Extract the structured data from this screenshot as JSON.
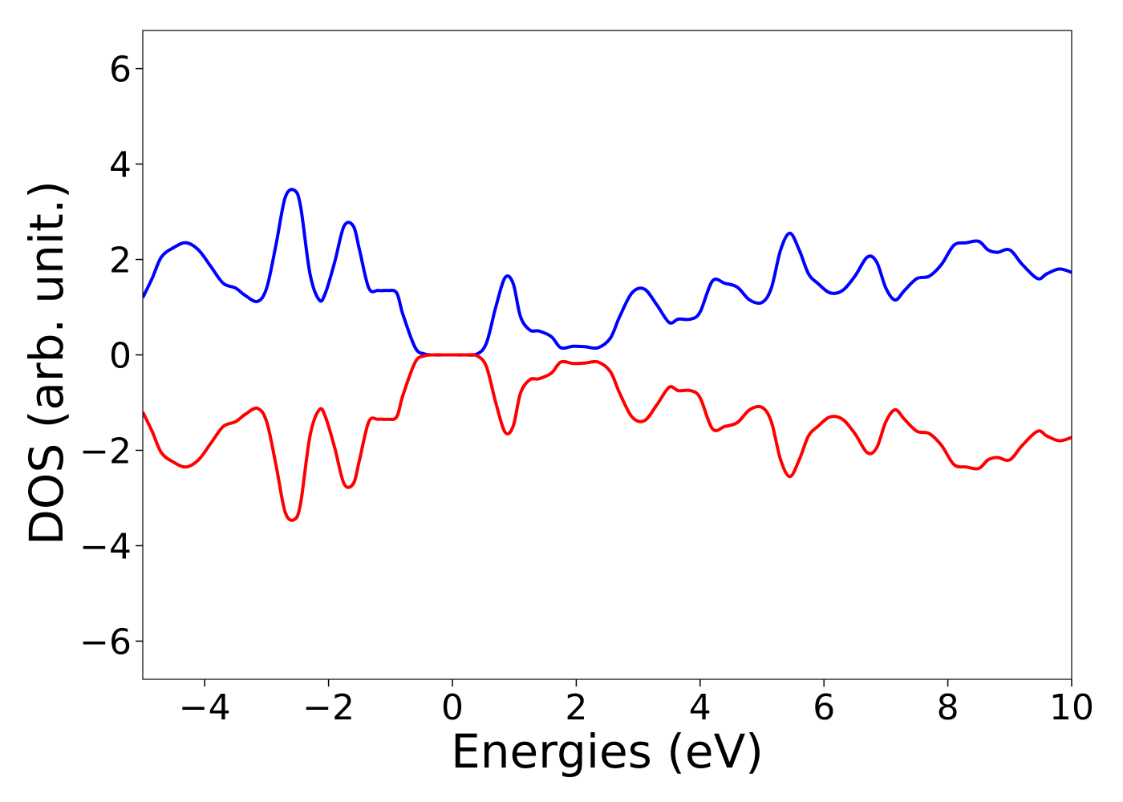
{
  "chart_data": {
    "type": "line",
    "title": "",
    "xlabel": "Energies (eV)",
    "ylabel": "DOS (arb. unit.)",
    "xlim": [
      -5,
      10
    ],
    "ylim": [
      -6.8,
      6.8
    ],
    "grid": false,
    "legend": "none",
    "x_ticks": [
      -4,
      -2,
      0,
      2,
      4,
      6,
      8,
      10
    ],
    "x_tick_labels": [
      "−4",
      "−2",
      "0",
      "2",
      "4",
      "6",
      "8",
      "10"
    ],
    "y_ticks": [
      -6,
      -4,
      -2,
      0,
      2,
      4,
      6
    ],
    "y_tick_labels": [
      "−6",
      "−4",
      "−2",
      "0",
      "2",
      "4",
      "6"
    ],
    "series": [
      {
        "color": "#0000ff",
        "x": [
          -5.0,
          -4.85,
          -4.7,
          -4.5,
          -4.3,
          -4.1,
          -3.9,
          -3.7,
          -3.5,
          -3.35,
          -3.15,
          -3.0,
          -2.85,
          -2.7,
          -2.55,
          -2.45,
          -2.3,
          -2.15,
          -2.05,
          -1.9,
          -1.75,
          -1.6,
          -1.5,
          -1.35,
          -1.2,
          -1.05,
          -0.9,
          -0.8,
          -0.6,
          -0.45,
          -0.3,
          -0.1,
          0.0,
          0.2,
          0.4,
          0.55,
          0.7,
          0.85,
          0.98,
          1.1,
          1.25,
          1.4,
          1.6,
          1.75,
          1.95,
          2.15,
          2.35,
          2.55,
          2.7,
          2.9,
          3.1,
          3.3,
          3.5,
          3.65,
          3.85,
          4.0,
          4.2,
          4.4,
          4.6,
          4.8,
          5.0,
          5.15,
          5.3,
          5.45,
          5.6,
          5.75,
          5.9,
          6.1,
          6.3,
          6.5,
          6.7,
          6.85,
          7.0,
          7.15,
          7.3,
          7.5,
          7.7,
          7.9,
          8.1,
          8.3,
          8.5,
          8.65,
          8.8,
          9.0,
          9.2,
          9.45,
          9.6,
          9.8,
          10.0
        ],
        "y": [
          1.2,
          1.6,
          2.05,
          2.25,
          2.35,
          2.2,
          1.85,
          1.5,
          1.4,
          1.25,
          1.12,
          1.4,
          2.3,
          3.3,
          3.45,
          3.1,
          1.7,
          1.15,
          1.3,
          1.95,
          2.7,
          2.7,
          2.2,
          1.4,
          1.35,
          1.35,
          1.3,
          0.85,
          0.15,
          0.02,
          0.0,
          0.0,
          0.0,
          0.0,
          0.02,
          0.25,
          1.0,
          1.62,
          1.5,
          0.8,
          0.52,
          0.5,
          0.38,
          0.15,
          0.18,
          0.17,
          0.15,
          0.35,
          0.8,
          1.3,
          1.38,
          1.05,
          0.68,
          0.75,
          0.75,
          0.9,
          1.55,
          1.5,
          1.42,
          1.15,
          1.1,
          1.4,
          2.2,
          2.55,
          2.2,
          1.7,
          1.5,
          1.3,
          1.35,
          1.65,
          2.05,
          1.95,
          1.4,
          1.15,
          1.35,
          1.6,
          1.65,
          1.9,
          2.3,
          2.35,
          2.38,
          2.2,
          2.15,
          2.2,
          1.9,
          1.6,
          1.7,
          1.8,
          1.73
        ]
      },
      {
        "color": "#ff0000",
        "x": [
          -5.0,
          -4.85,
          -4.7,
          -4.5,
          -4.3,
          -4.1,
          -3.9,
          -3.7,
          -3.5,
          -3.35,
          -3.15,
          -3.0,
          -2.85,
          -2.7,
          -2.55,
          -2.45,
          -2.3,
          -2.15,
          -2.05,
          -1.9,
          -1.75,
          -1.6,
          -1.5,
          -1.35,
          -1.2,
          -1.05,
          -0.9,
          -0.8,
          -0.6,
          -0.45,
          -0.3,
          -0.1,
          0.0,
          0.2,
          0.4,
          0.55,
          0.7,
          0.85,
          0.98,
          1.1,
          1.25,
          1.4,
          1.6,
          1.75,
          1.95,
          2.15,
          2.35,
          2.55,
          2.7,
          2.9,
          3.1,
          3.3,
          3.5,
          3.65,
          3.85,
          4.0,
          4.2,
          4.4,
          4.6,
          4.8,
          5.0,
          5.15,
          5.3,
          5.45,
          5.6,
          5.75,
          5.9,
          6.1,
          6.3,
          6.5,
          6.7,
          6.85,
          7.0,
          7.15,
          7.3,
          7.5,
          7.7,
          7.9,
          8.1,
          8.3,
          8.5,
          8.65,
          8.8,
          9.0,
          9.2,
          9.45,
          9.6,
          9.8,
          10.0
        ],
        "y": [
          -1.2,
          -1.6,
          -2.05,
          -2.25,
          -2.35,
          -2.2,
          -1.85,
          -1.5,
          -1.4,
          -1.25,
          -1.12,
          -1.4,
          -2.3,
          -3.3,
          -3.45,
          -3.1,
          -1.7,
          -1.15,
          -1.3,
          -1.95,
          -2.7,
          -2.7,
          -2.2,
          -1.4,
          -1.35,
          -1.35,
          -1.3,
          -0.85,
          -0.15,
          -0.02,
          0.0,
          0.0,
          0.0,
          0.0,
          -0.02,
          -0.25,
          -1.0,
          -1.62,
          -1.5,
          -0.8,
          -0.52,
          -0.5,
          -0.38,
          -0.15,
          -0.18,
          -0.17,
          -0.15,
          -0.35,
          -0.8,
          -1.3,
          -1.38,
          -1.05,
          -0.68,
          -0.75,
          -0.75,
          -0.9,
          -1.55,
          -1.5,
          -1.42,
          -1.15,
          -1.1,
          -1.4,
          -2.2,
          -2.55,
          -2.2,
          -1.7,
          -1.5,
          -1.3,
          -1.35,
          -1.65,
          -2.05,
          -1.95,
          -1.4,
          -1.15,
          -1.35,
          -1.6,
          -1.65,
          -1.9,
          -2.3,
          -2.35,
          -2.38,
          -2.2,
          -2.15,
          -2.2,
          -1.9,
          -1.6,
          -1.7,
          -1.8,
          -1.73
        ]
      }
    ]
  }
}
